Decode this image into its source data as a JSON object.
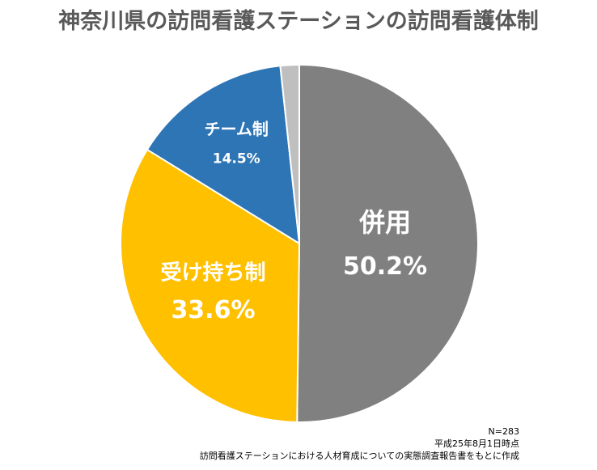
{
  "title": "神奈川県の訪問看護ステーションの訪問看護体制",
  "chart_data": {
    "type": "pie",
    "categories": [
      "併用",
      "受け持ち制",
      "チーム制",
      ""
    ],
    "values": [
      50.2,
      33.6,
      14.5,
      1.7
    ],
    "value_labels": [
      "50.2%",
      "33.6%",
      "14.5%",
      ""
    ],
    "colors": [
      "#808080",
      "#FFC000",
      "#2E75B6",
      "#BFBFBF"
    ],
    "start": "12 o'clock",
    "direction": "clockwise",
    "legend": "none"
  },
  "notes": {
    "n": "N=283",
    "date": "平成25年8月1日時点",
    "source": "訪問看護ステーションにおける人材育成についての実態調査報告書をもとに作成"
  }
}
